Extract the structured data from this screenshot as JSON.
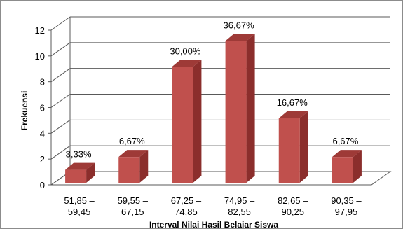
{
  "chart_data": {
    "type": "bar",
    "title": "",
    "xlabel": "Interval Nilai Hasil Belajar Siswa",
    "ylabel": "Frekuensi",
    "ylim": [
      0,
      12
    ],
    "yticks": [
      "0",
      "2",
      "4",
      "6",
      "8",
      "10",
      "12"
    ],
    "grid": true,
    "legend": "none",
    "style": "3d-column",
    "categories": [
      [
        "51,85 –",
        "59,45"
      ],
      [
        "59,55 –",
        "67,15"
      ],
      [
        "67,25 –",
        "74,85"
      ],
      [
        "74,95 –",
        "82,55"
      ],
      [
        "82,65 –",
        "90,25"
      ],
      [
        "90,35 –",
        "97,95"
      ]
    ],
    "values": [
      1,
      2,
      9,
      11,
      5,
      2
    ],
    "data_labels": [
      "3,33%",
      "6,67%",
      "30,00%",
      "36,67%",
      "16,67%",
      "6,67%"
    ],
    "colors": {
      "bar_front": "#C0504D",
      "bar_side": "#8B2E2C",
      "bar_top": "#9E3A37",
      "grid": "#595959"
    }
  }
}
